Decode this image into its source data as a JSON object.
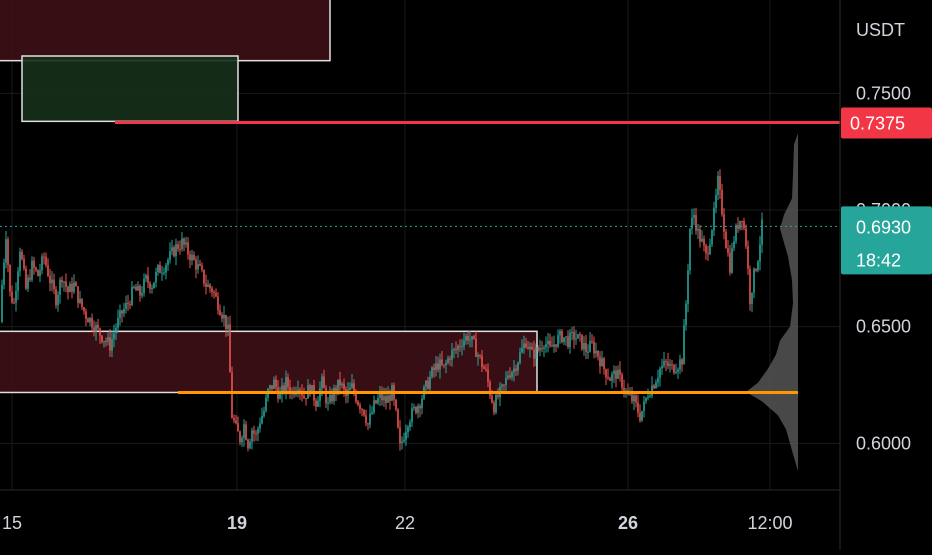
{
  "colors": {
    "background": "#000000",
    "grid": "#1a1a1a",
    "candle_up": "#26a69a",
    "candle_down": "#ef5350",
    "resistance_line": "#f23645",
    "support_line": "#ff9800",
    "current_price": "#26a69a",
    "supply_zone_fill": "#3d1016",
    "demand_zone_fill": "#15301a",
    "zone_border": "#e0e0e0",
    "volume_profile": "#555555",
    "axis_text": "#d1d4dc"
  },
  "chart_data": {
    "type": "candlestick",
    "currency": "USDT",
    "ylim": [
      0.58,
      0.79
    ],
    "y_ticks": [
      "0.7500",
      "0.7000",
      "0.6500",
      "0.6000"
    ],
    "x_ticks": [
      "15",
      "19",
      "22",
      "26",
      "12:00"
    ],
    "resistance_label": "0.7375",
    "current_price_label": "0.6930",
    "countdown_label": "18:42",
    "levels": {
      "resistance": 0.7375,
      "support": 0.6218,
      "current": 0.693
    },
    "zones": [
      {
        "kind": "supply",
        "top": 0.803,
        "bottom": 0.764
      },
      {
        "kind": "demand",
        "top": 0.766,
        "bottom": 0.738
      },
      {
        "kind": "supply",
        "top": 0.648,
        "bottom": 0.6218
      }
    ],
    "price_path": [
      [
        0,
        0.652
      ],
      [
        2,
        0.668
      ],
      [
        6,
        0.69
      ],
      [
        10,
        0.664
      ],
      [
        14,
        0.66
      ],
      [
        20,
        0.684
      ],
      [
        26,
        0.666
      ],
      [
        32,
        0.676
      ],
      [
        38,
        0.672
      ],
      [
        44,
        0.68
      ],
      [
        50,
        0.67
      ],
      [
        56,
        0.662
      ],
      [
        62,
        0.672
      ],
      [
        68,
        0.665
      ],
      [
        74,
        0.668
      ],
      [
        80,
        0.66
      ],
      [
        86,
        0.655
      ],
      [
        92,
        0.652
      ],
      [
        98,
        0.648
      ],
      [
        104,
        0.645
      ],
      [
        110,
        0.642
      ],
      [
        116,
        0.65
      ],
      [
        122,
        0.656
      ],
      [
        128,
        0.66
      ],
      [
        134,
        0.666
      ],
      [
        140,
        0.664
      ],
      [
        146,
        0.67
      ],
      [
        152,
        0.668
      ],
      [
        158,
        0.674
      ],
      [
        164,
        0.676
      ],
      [
        170,
        0.68
      ],
      [
        176,
        0.684
      ],
      [
        182,
        0.686
      ],
      [
        188,
        0.682
      ],
      [
        194,
        0.678
      ],
      [
        200,
        0.674
      ],
      [
        206,
        0.668
      ],
      [
        212,
        0.666
      ],
      [
        218,
        0.66
      ],
      [
        224,
        0.654
      ],
      [
        228,
        0.648
      ],
      [
        232,
        0.612
      ],
      [
        236,
        0.606
      ],
      [
        240,
        0.602
      ],
      [
        244,
        0.608
      ],
      [
        248,
        0.6
      ],
      [
        252,
        0.606
      ],
      [
        256,
        0.603
      ],
      [
        260,
        0.61
      ],
      [
        264,
        0.614
      ],
      [
        268,
        0.622
      ],
      [
        274,
        0.626
      ],
      [
        280,
        0.62
      ],
      [
        286,
        0.626
      ],
      [
        292,
        0.622
      ],
      [
        298,
        0.626
      ],
      [
        304,
        0.62
      ],
      [
        310,
        0.624
      ],
      [
        316,
        0.618
      ],
      [
        322,
        0.626
      ],
      [
        328,
        0.616
      ],
      [
        334,
        0.622
      ],
      [
        340,
        0.626
      ],
      [
        346,
        0.62
      ],
      [
        352,
        0.624
      ],
      [
        358,
        0.618
      ],
      [
        364,
        0.614
      ],
      [
        368,
        0.608
      ],
      [
        374,
        0.616
      ],
      [
        380,
        0.62
      ],
      [
        386,
        0.618
      ],
      [
        392,
        0.622
      ],
      [
        396,
        0.612
      ],
      [
        400,
        0.598
      ],
      [
        404,
        0.604
      ],
      [
        408,
        0.61
      ],
      [
        414,
        0.614
      ],
      [
        420,
        0.618
      ],
      [
        426,
        0.624
      ],
      [
        432,
        0.63
      ],
      [
        438,
        0.634
      ],
      [
        444,
        0.632
      ],
      [
        450,
        0.638
      ],
      [
        456,
        0.64
      ],
      [
        462,
        0.644
      ],
      [
        468,
        0.646
      ],
      [
        474,
        0.642
      ],
      [
        480,
        0.636
      ],
      [
        486,
        0.63
      ],
      [
        490,
        0.622
      ],
      [
        494,
        0.616
      ],
      [
        498,
        0.62
      ],
      [
        504,
        0.624
      ],
      [
        508,
        0.63
      ],
      [
        514,
        0.632
      ],
      [
        520,
        0.638
      ],
      [
        526,
        0.644
      ],
      [
        532,
        0.638
      ],
      [
        538,
        0.64
      ],
      [
        544,
        0.644
      ],
      [
        550,
        0.64
      ],
      [
        556,
        0.644
      ],
      [
        562,
        0.646
      ],
      [
        568,
        0.644
      ],
      [
        574,
        0.646
      ],
      [
        580,
        0.644
      ],
      [
        586,
        0.64
      ],
      [
        592,
        0.642
      ],
      [
        598,
        0.638
      ],
      [
        604,
        0.632
      ],
      [
        610,
        0.628
      ],
      [
        616,
        0.63
      ],
      [
        622,
        0.626
      ],
      [
        628,
        0.62
      ],
      [
        634,
        0.618
      ],
      [
        640,
        0.612
      ],
      [
        644,
        0.616
      ],
      [
        648,
        0.622
      ],
      [
        654,
        0.626
      ],
      [
        660,
        0.632
      ],
      [
        666,
        0.634
      ],
      [
        672,
        0.632
      ],
      [
        678,
        0.634
      ],
      [
        682,
        0.636
      ],
      [
        686,
        0.66
      ],
      [
        690,
        0.692
      ],
      [
        694,
        0.698
      ],
      [
        698,
        0.69
      ],
      [
        702,
        0.686
      ],
      [
        706,
        0.68
      ],
      [
        710,
        0.688
      ],
      [
        714,
        0.698
      ],
      [
        718,
        0.712
      ],
      [
        722,
        0.7
      ],
      [
        726,
        0.686
      ],
      [
        730,
        0.676
      ],
      [
        734,
        0.688
      ],
      [
        738,
        0.694
      ],
      [
        742,
        0.698
      ],
      [
        746,
        0.686
      ],
      [
        750,
        0.662
      ],
      [
        754,
        0.672
      ],
      [
        758,
        0.68
      ],
      [
        762,
        0.693
      ]
    ]
  }
}
